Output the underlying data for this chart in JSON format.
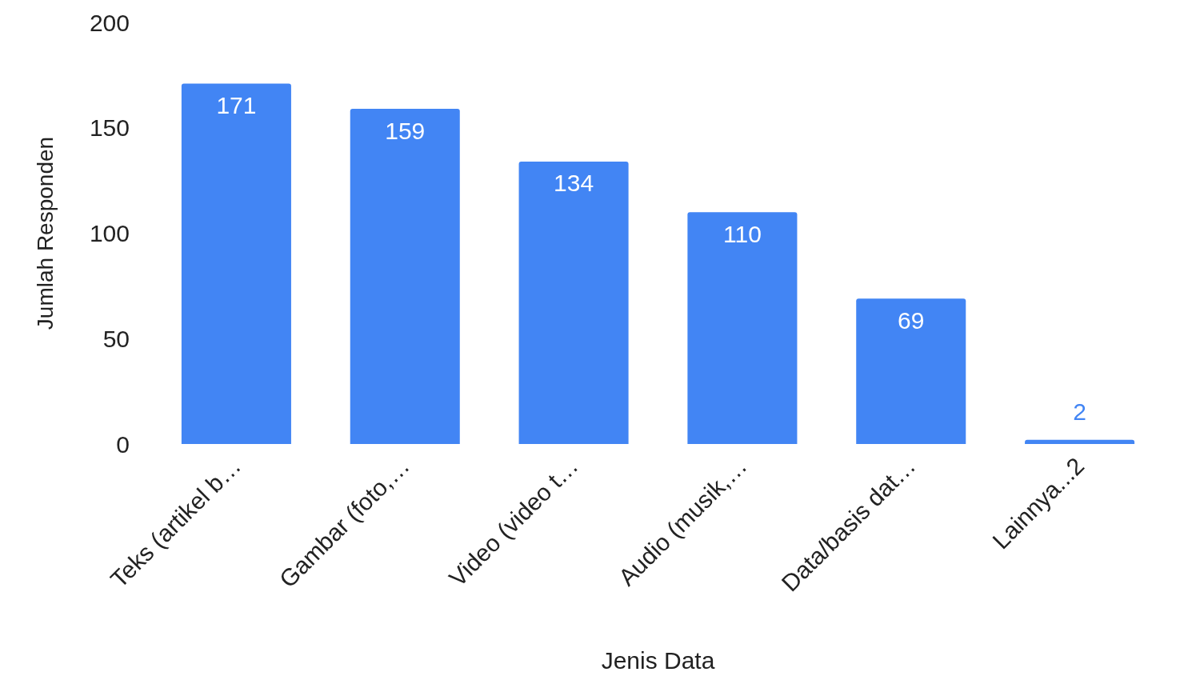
{
  "chart_data": {
    "type": "bar",
    "xlabel": "Jenis Data",
    "ylabel": "Jumlah Responden",
    "categories": [
      "Teks (artikel b…",
      "Gambar (foto,…",
      "Video (video t…",
      "Audio (musik,…",
      "Data/basis dat…",
      "Lainnya...2"
    ],
    "values": [
      171,
      159,
      134,
      110,
      69,
      2
    ],
    "color": "#4285f4",
    "ylim": [
      0,
      200
    ],
    "yticks": [
      0,
      50,
      100,
      150,
      200
    ],
    "grid": false,
    "data_labels": true
  }
}
